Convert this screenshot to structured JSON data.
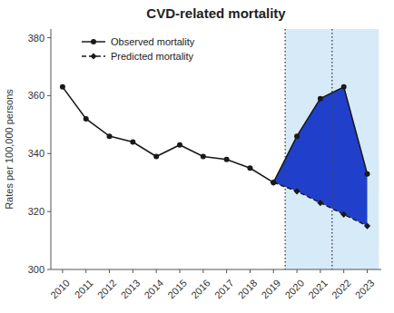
{
  "chart_data": {
    "type": "line",
    "title": "CVD-related mortality",
    "ylabel": "Rates per 100,000 persons",
    "x": [
      2010,
      2011,
      2012,
      2013,
      2014,
      2015,
      2016,
      2017,
      2018,
      2019,
      2020,
      2021,
      2022,
      2023
    ],
    "series": [
      {
        "name": "Observed mortality",
        "color": "#1a1a1a",
        "marker": "circle",
        "line_style": "solid",
        "values": [
          363,
          352,
          346,
          344,
          339,
          343,
          339,
          338,
          335,
          330,
          346,
          359,
          363,
          333
        ]
      },
      {
        "name": "Predicted mortality",
        "color": "#1a1a1a",
        "marker": "diamond",
        "line_style": "dashed",
        "values": [
          null,
          null,
          null,
          null,
          null,
          null,
          null,
          null,
          null,
          330,
          327,
          323,
          319,
          315
        ]
      }
    ],
    "xlim": [
      2009.5,
      2023.6
    ],
    "xticks": [
      2010,
      2011,
      2012,
      2013,
      2014,
      2015,
      2016,
      2017,
      2018,
      2019,
      2020,
      2021,
      2022,
      2023
    ],
    "ylim": [
      300,
      383
    ],
    "yticks": [
      300,
      320,
      340,
      360,
      380
    ],
    "shade": {
      "start": 2019.5,
      "end": 2023.5,
      "color": "#d6eaf8"
    },
    "vlines": [
      2019.5,
      2021.5
    ],
    "gap_fill": {
      "from": 2019,
      "to": 2023,
      "color": "#2040cc"
    },
    "grid": false,
    "legend": "upper left"
  }
}
